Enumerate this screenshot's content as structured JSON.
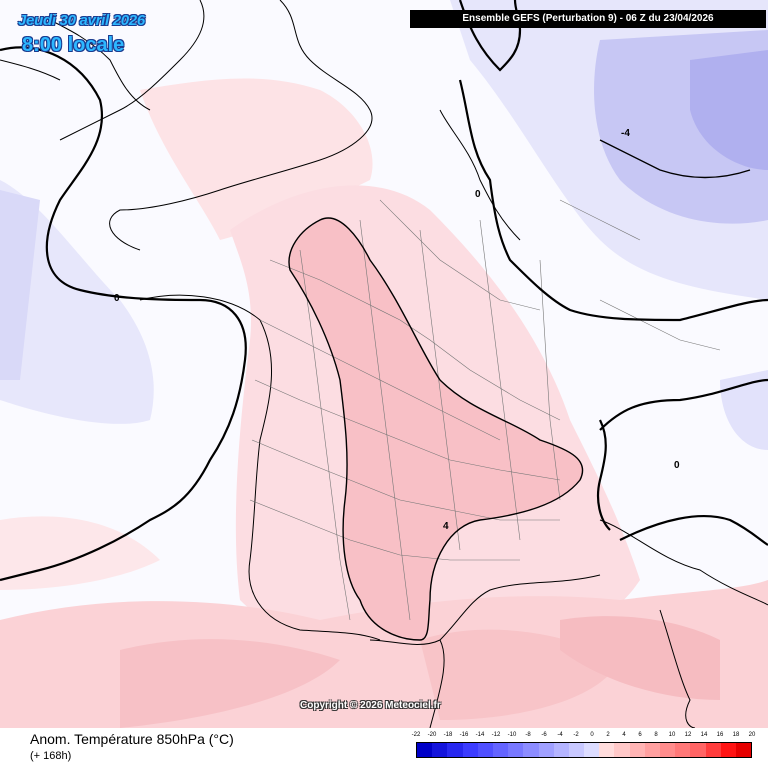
{
  "header": {
    "model_title": "Ensemble GEFS  (Perturbation 9)  -  06 Z du 23/04/2026",
    "date": "Jeudi 30 avril 2026",
    "time": "8:00 locale"
  },
  "map": {
    "copyright": "Copyright © 2026 Meteociel.fr",
    "contour_labels": [
      "-4",
      "0",
      "0",
      "0",
      "4"
    ]
  },
  "footer": {
    "title": "Anom. Température 850hPa (°C)",
    "subtitle": "(+ 168h)"
  },
  "legend": {
    "labels": [
      "-22",
      "-20",
      "-18",
      "-16",
      "-14",
      "-12",
      "-10",
      "-8",
      "-6",
      "-4",
      "-2",
      "0",
      "2",
      "4",
      "6",
      "8",
      "10",
      "12",
      "14",
      "16",
      "18",
      "20"
    ],
    "colors": [
      "#0000c8",
      "#1414dc",
      "#2828f0",
      "#3c3cff",
      "#5050ff",
      "#6464ff",
      "#7878ff",
      "#8c8cff",
      "#a0a0ff",
      "#b4b4ff",
      "#c8c8ff",
      "#dcdcff",
      "#ffdcdc",
      "#ffc8c8",
      "#ffb4b4",
      "#ffa0a0",
      "#ff8c8c",
      "#ff7878",
      "#ff6464",
      "#ff3c3c",
      "#ff1414",
      "#e60000"
    ]
  }
}
